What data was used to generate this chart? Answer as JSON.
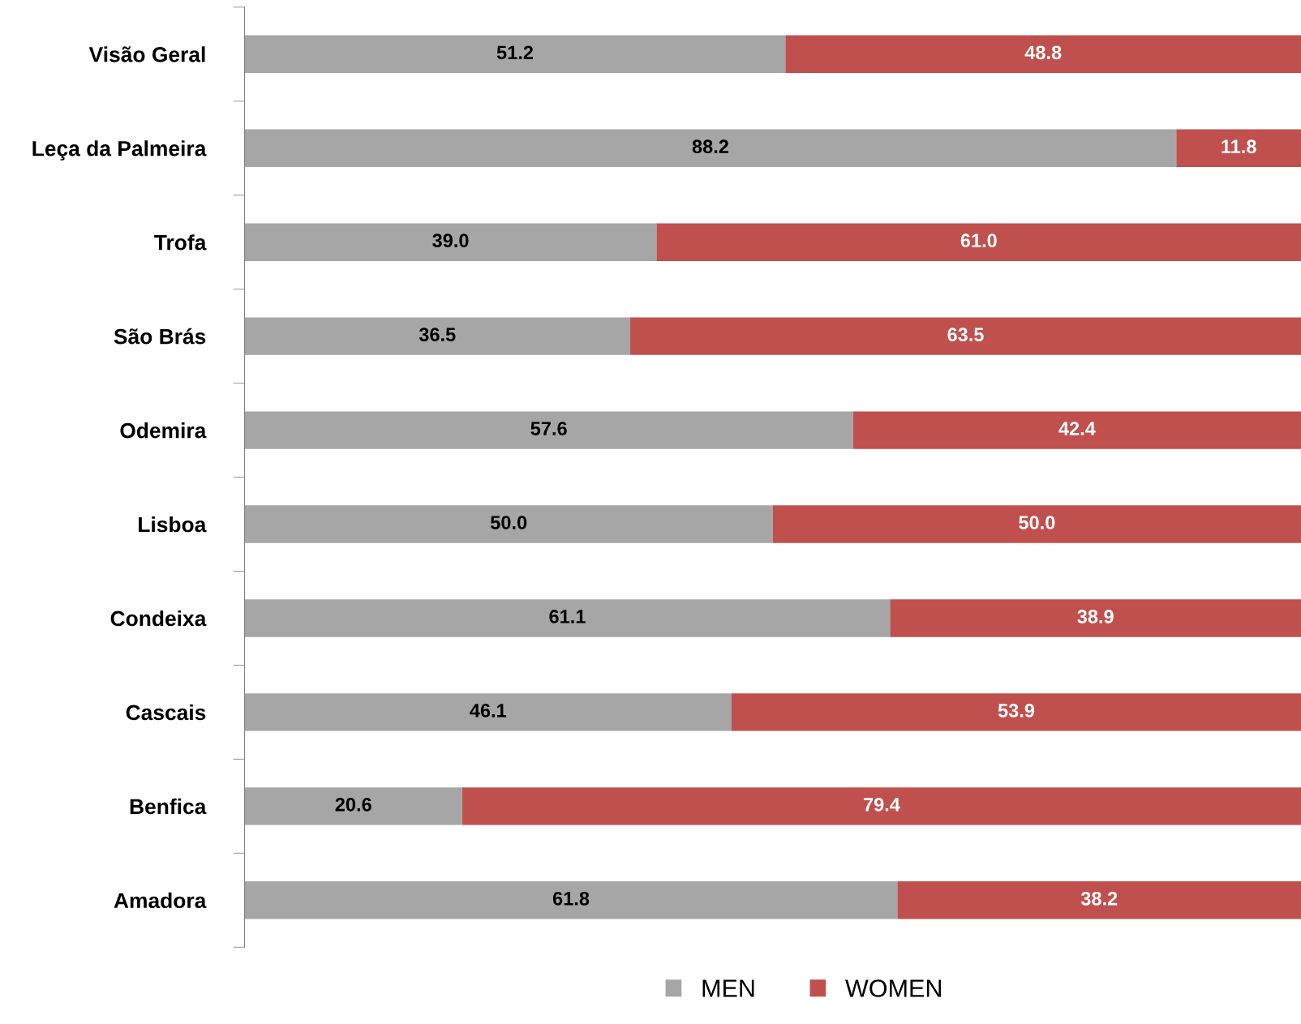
{
  "chart_data": {
    "type": "bar",
    "orientation": "horizontal",
    "stacked": true,
    "legend": "bottom",
    "grid": false,
    "xlim": [
      0,
      100
    ],
    "tick_labels": "y",
    "categories": [
      "Visão Geral",
      "Leça da Palmeira",
      "Trofa",
      "São Brás",
      "Odemira",
      "Lisboa",
      "Condeixa",
      "Cascais",
      "Benfica",
      "Amadora"
    ],
    "series": [
      {
        "name": "MEN",
        "color": "#a6a6a6",
        "values": [
          51.2,
          88.2,
          39.0,
          36.5,
          57.6,
          50.0,
          61.1,
          46.1,
          20.6,
          61.8
        ],
        "value_labels": [
          "51.2",
          "88.2",
          "39.0",
          "36.5",
          "57.6",
          "50.0",
          "61.1",
          "46.1",
          "20.6",
          "61.8"
        ]
      },
      {
        "name": "WOMEN",
        "color": "#c0504d",
        "values": [
          48.8,
          11.8,
          61.0,
          63.5,
          42.4,
          50.0,
          38.9,
          53.9,
          79.4,
          38.2
        ],
        "value_labels": [
          "48.8",
          "11.8",
          "61.0",
          "63.5",
          "42.4",
          "50.0",
          "38.9",
          "53.9",
          "79.4",
          "38.2"
        ]
      }
    ]
  }
}
